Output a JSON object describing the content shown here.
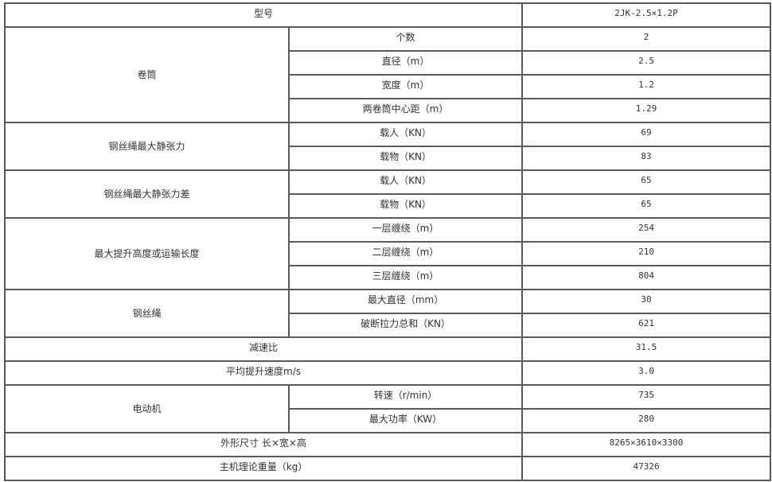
{
  "table": {
    "model": {
      "label": "型号",
      "value": "2JK-2.5×1.2P"
    },
    "drum": {
      "label": "卷筒",
      "rows": [
        {
          "label": "个数",
          "value": "2"
        },
        {
          "label": "直径（m）",
          "value": "2.5"
        },
        {
          "label": "宽度（m）",
          "value": "1.2"
        },
        {
          "label": "两卷筒中心距（m）",
          "value": "1.29"
        }
      ]
    },
    "max_static_tension": {
      "label": "钢丝绳最大静张力",
      "rows": [
        {
          "label": "载人（KN）",
          "value": "69"
        },
        {
          "label": "载物（KN）",
          "value": "83"
        }
      ]
    },
    "max_static_tension_diff": {
      "label": "钢丝绳最大静张力差",
      "rows": [
        {
          "label": "载人（KN）",
          "value": "65"
        },
        {
          "label": "载物（KN）",
          "value": "65"
        }
      ]
    },
    "max_lift_height": {
      "label": "最大提升高度或运输长度",
      "rows": [
        {
          "label": "一层缠绕（m）",
          "value": "254"
        },
        {
          "label": "二层缠绕（m）",
          "value": "210"
        },
        {
          "label": "三层缠绕（m）",
          "value": "804"
        }
      ]
    },
    "wire_rope": {
      "label": "钢丝绳",
      "rows": [
        {
          "label": "最大直径（mm）",
          "value": "30"
        },
        {
          "label": "破断拉力总和（KN）",
          "value": "621"
        }
      ]
    },
    "reduction_ratio": {
      "label": "减速比",
      "value": "31.5"
    },
    "avg_speed": {
      "label": "平均提升速度m/s",
      "value": "3.0"
    },
    "motor": {
      "label": "电动机",
      "rows": [
        {
          "label": "转速（r/min）",
          "value": "735"
        },
        {
          "label": "最大功率（KW）",
          "value": "280"
        }
      ]
    },
    "dimensions": {
      "label": "外形尺寸 长×宽×高",
      "value": "8265×3610×3300"
    },
    "weight": {
      "label": "主机理论重量（kg）",
      "value": "47326"
    }
  }
}
